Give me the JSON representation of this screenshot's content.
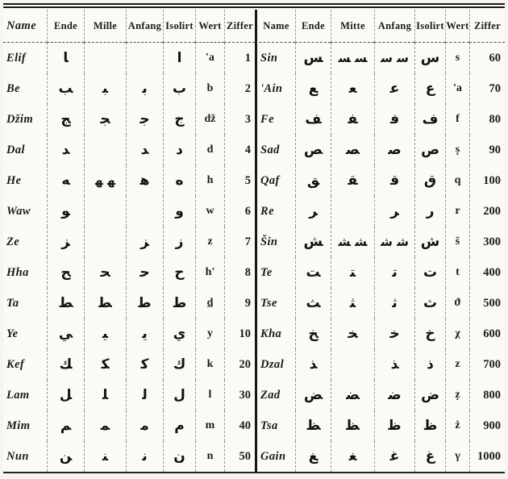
{
  "table": {
    "headers": {
      "left": [
        "Name",
        "Ende",
        "Mille",
        "Anfang",
        "Isolirt",
        "Wert",
        "Ziffer"
      ],
      "right": [
        "Name",
        "Ende",
        "Mitte",
        "Anfang",
        "Isolirt",
        "Wert",
        "Ziffer"
      ]
    },
    "left_rows": [
      {
        "name": "Elif",
        "ende": "‍a",
        "mitte": "",
        "anfang": "",
        "isolirt": "a",
        "wert": "'a",
        "ziffer": "1"
      },
      {
        "name": "Be",
        "ende": "‍b",
        "mitte": "‍b‍",
        "anfang": "b‍",
        "isolirt": "b",
        "wert": "b",
        "ziffer": "2"
      },
      {
        "name": "Džim",
        "ende": "‍j",
        "mitte": "‍j‍",
        "anfang": "j‍",
        "isolirt": "j",
        "wert": "dž",
        "ziffer": "3"
      },
      {
        "name": "Dal",
        "ende": "‍d",
        "mitte": "",
        "anfang": "‍d",
        "isolirt": "d",
        "wert": "d",
        "ziffer": "4"
      },
      {
        "name": "He",
        "ende": "‍h",
        "mitte": "‍h‍ ‍h‍",
        "anfang": "h‍",
        "isolirt": "h",
        "wert": "h",
        "ziffer": "5"
      },
      {
        "name": "Waw",
        "ende": "‍w",
        "mitte": "",
        "anfang": "",
        "isolirt": "w",
        "wert": "w",
        "ziffer": "6"
      },
      {
        "name": "Ze",
        "ende": "‍z",
        "mitte": "",
        "anfang": "‍z",
        "isolirt": "z",
        "wert": "z",
        "ziffer": "7"
      },
      {
        "name": "Hha",
        "ende": "‍c",
        "mitte": "‍c‍",
        "anfang": "c‍",
        "isolirt": "c",
        "wert": "h'",
        "ziffer": "8"
      },
      {
        "name": "Ta",
        "ende": "‍t",
        "mitte": "‍t‍",
        "anfang": "t‍",
        "isolirt": "t",
        "wert": "d̲",
        "ziffer": "9"
      },
      {
        "name": "Ye",
        "ende": "‍y",
        "mitte": "‍y‍",
        "anfang": "y‍",
        "isolirt": "y",
        "wert": "y",
        "ziffer": "10"
      },
      {
        "name": "Kef",
        "ende": "‍k",
        "mitte": "‍k‍",
        "anfang": "k‍",
        "isolirt": "k",
        "wert": "k",
        "ziffer": "20"
      },
      {
        "name": "Lam",
        "ende": "‍l",
        "mitte": "‍l‍",
        "anfang": "l‍",
        "isolirt": "l",
        "wert": "l",
        "ziffer": "30"
      },
      {
        "name": "Mim",
        "ende": "‍m",
        "mitte": "‍m‍",
        "anfang": "m‍",
        "isolirt": "m",
        "wert": "m",
        "ziffer": "40"
      },
      {
        "name": "Nun",
        "ende": "‍n",
        "mitte": "‍n‍",
        "anfang": "n‍",
        "isolirt": "n",
        "wert": "n",
        "ziffer": "50"
      }
    ],
    "right_rows": [
      {
        "name": "Sin",
        "ende": "‍s",
        "mitte": "‍s‍ ‍s‍",
        "anfang": "s‍ s‍",
        "isolirt": "s",
        "wert": "s",
        "ziffer": "60"
      },
      {
        "name": "'Ain",
        "ende": "‍E",
        "mitte": "‍E‍",
        "anfang": "E‍",
        "isolirt": "E",
        "wert": "'a",
        "ziffer": "70"
      },
      {
        "name": "Fe",
        "ende": "‍f",
        "mitte": "‍f‍",
        "anfang": "f‍",
        "isolirt": "f",
        "wert": "f",
        "ziffer": "80"
      },
      {
        "name": "Sad",
        "ende": "‍S",
        "mitte": "‍S‍",
        "anfang": "S‍",
        "isolirt": "S",
        "wert": "ṣ",
        "ziffer": "90"
      },
      {
        "name": "Qaf",
        "ende": "‍q",
        "mitte": "‍q‍",
        "anfang": "q‍",
        "isolirt": "q",
        "wert": "q",
        "ziffer": "100"
      },
      {
        "name": "Re",
        "ende": "‍r",
        "mitte": "",
        "anfang": "‍r",
        "isolirt": "r",
        "wert": "r",
        "ziffer": "200"
      },
      {
        "name": "Šin",
        "ende": "‍x",
        "mitte": "‍x‍ ‍x‍",
        "anfang": "x‍ x‍",
        "isolirt": "x",
        "wert": "š",
        "ziffer": "300"
      },
      {
        "name": "Te",
        "ende": "‍T",
        "mitte": "‍T‍",
        "anfang": "T‍",
        "isolirt": "T",
        "wert": "t",
        "ziffer": "400"
      },
      {
        "name": "Tse",
        "ende": "‍C",
        "mitte": "‍C‍",
        "anfang": "C‍",
        "isolirt": "C",
        "wert": "ϑ",
        "ziffer": "500"
      },
      {
        "name": "Kha",
        "ende": "‍X",
        "mitte": "‍X‍",
        "anfang": "X‍",
        "isolirt": "X",
        "wert": "χ",
        "ziffer": "600"
      },
      {
        "name": "Dzal",
        "ende": "‍D",
        "mitte": "",
        "anfang": "‍D",
        "isolirt": "D",
        "wert": "z",
        "ziffer": "700"
      },
      {
        "name": "Zad",
        "ende": "‍Z",
        "mitte": "‍Z‍",
        "anfang": "Z‍",
        "isolirt": "Z",
        "wert": "ẓ",
        "ziffer": "800"
      },
      {
        "name": "Tsa",
        "ende": "‍V",
        "mitte": "‍V‍",
        "anfang": "V‍",
        "isolirt": "V",
        "wert": "ż",
        "ziffer": "900"
      },
      {
        "name": "Gain",
        "ende": "‍G",
        "mitte": "‍G‍",
        "anfang": "G‍",
        "isolirt": "G",
        "wert": "γ",
        "ziffer": "1000"
      }
    ],
    "arabic_map": {
      "a": "ا",
      "b": "ب",
      "j": "ج",
      "d": "د",
      "h": "ه",
      "w": "و",
      "z": "ز",
      "c": "ح",
      "t": "ط",
      "y": "ي",
      "k": "ك",
      "l": "ل",
      "m": "م",
      "n": "ن",
      "s": "س",
      "E": "ع",
      "f": "ف",
      "S": "ص",
      "q": "ق",
      "r": "ر",
      "x": "ش",
      "T": "ت",
      "C": "ث",
      "X": "خ",
      "D": "ذ",
      "Z": "ض",
      "V": "ظ",
      "G": "غ"
    }
  }
}
